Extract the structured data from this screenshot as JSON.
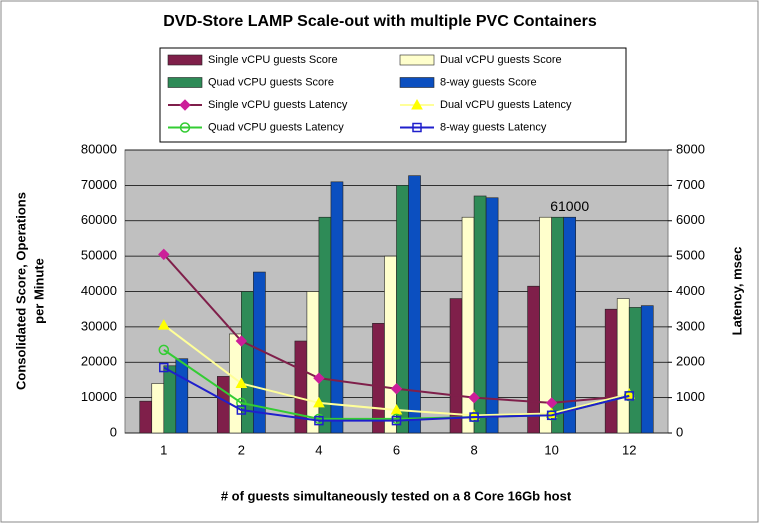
{
  "chart_data": {
    "type": "bar",
    "title": "DVD-Store LAMP Scale-out with multiple PVC Containers",
    "xlabel": "# of guests simultaneously tested on a 8 Core 16Gb host",
    "ylabel": [
      "Consolidated Score, Operations",
      "per Minute"
    ],
    "y2label": "Latency, msec",
    "categories": [
      "1",
      "2",
      "4",
      "6",
      "8",
      "10",
      "12"
    ],
    "ylim": [
      0,
      80000
    ],
    "yticks": [
      0,
      10000,
      20000,
      30000,
      40000,
      50000,
      60000,
      70000,
      80000
    ],
    "y2lim": [
      0,
      8000
    ],
    "y2ticks": [
      0,
      1000,
      2000,
      3000,
      4000,
      5000,
      6000,
      7000,
      8000
    ],
    "grid": true,
    "legend": "top",
    "series": [
      {
        "name": "Single vCPU guests Score",
        "type": "bar",
        "color": "#7f1f4a",
        "values": [
          9000,
          16000,
          26000,
          31000,
          38000,
          41500,
          35000
        ]
      },
      {
        "name": "Dual vCPU guests Score",
        "type": "bar",
        "color": "#ffffcc",
        "values": [
          14000,
          28000,
          40000,
          50000,
          61000,
          61000,
          38000
        ]
      },
      {
        "name": "Quad vCPU guests Score",
        "type": "bar",
        "color": "#2e8b57",
        "values": [
          19000,
          40000,
          61000,
          70000,
          67000,
          61000,
          35500
        ]
      },
      {
        "name": "8-way guests Score",
        "type": "bar",
        "color": "#0b4fc0",
        "values": [
          21000,
          45500,
          71000,
          72737,
          66500,
          61000,
          36000
        ],
        "label_index": 5
      },
      {
        "name": "Single vCPU guests Latency",
        "type": "line",
        "axis": "y2",
        "color": "#cc1f99",
        "line_color": "#7f1f4a",
        "marker": "diamond",
        "values": [
          5050,
          2600,
          1550,
          1250,
          1000,
          850,
          1050
        ]
      },
      {
        "name": "Dual vCPU guests Latency",
        "type": "line",
        "axis": "y2",
        "color": "#ffff00",
        "line_color": "#ffff99",
        "marker": "triangle",
        "values": [
          3050,
          1400,
          850,
          650,
          500,
          550,
          1100
        ]
      },
      {
        "name": "Quad vCPU guests Latency",
        "type": "line",
        "axis": "y2",
        "color": "#33cc33",
        "line_color": "#33cc33",
        "marker": "circle",
        "values": [
          2350,
          850,
          400,
          400,
          450,
          500,
          1050
        ]
      },
      {
        "name": "8-way guests Latency",
        "type": "line",
        "axis": "y2",
        "color": "#1f1fcc",
        "line_color": "#1f1fcc",
        "marker": "square",
        "values": [
          1850,
          650,
          350,
          350,
          450,
          500,
          1050
        ]
      }
    ]
  }
}
